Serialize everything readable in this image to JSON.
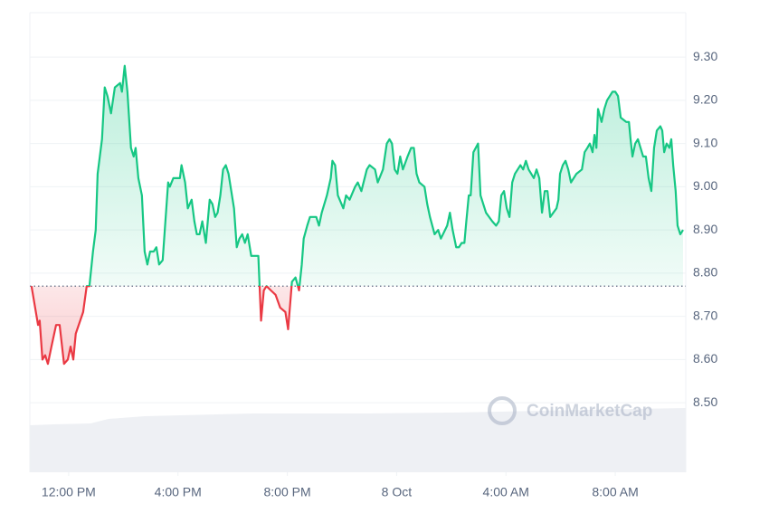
{
  "chart_data": {
    "type": "line",
    "watermark": "CoinMarketCap",
    "baseline": 8.77,
    "up_color": "#16c784",
    "down_color": "#ea3943",
    "grid": true,
    "xlim": [
      -1.42,
      22.58
    ],
    "ylim": [
      8.339,
      9.403
    ],
    "xticks": [
      {
        "value": 0,
        "label": "12:00 PM"
      },
      {
        "value": 4,
        "label": "4:00 PM"
      },
      {
        "value": 8,
        "label": "8:00 PM"
      },
      {
        "value": 12,
        "label": "8 Oct"
      },
      {
        "value": 16,
        "label": "4:00 AM"
      },
      {
        "value": 20,
        "label": "8:00 AM"
      }
    ],
    "yticks": [
      {
        "value": 8.5,
        "label": "8.50"
      },
      {
        "value": 8.6,
        "label": "8.60"
      },
      {
        "value": 8.7,
        "label": "8.70"
      },
      {
        "value": 8.8,
        "label": "8.80"
      },
      {
        "value": 8.9,
        "label": "8.90"
      },
      {
        "value": 9.0,
        "label": "9.00"
      },
      {
        "value": 9.1,
        "label": "9.10"
      },
      {
        "value": 9.2,
        "label": "9.20"
      },
      {
        "value": 9.3,
        "label": "9.30"
      }
    ],
    "x": [
      -1.36,
      -1.12,
      -1.06,
      -0.96,
      -0.86,
      -0.76,
      -0.63,
      -0.46,
      -0.33,
      -0.17,
      -0.03,
      0.07,
      0.17,
      0.26,
      0.53,
      0.66,
      0.76,
      0.89,
      0.99,
      1.06,
      1.22,
      1.32,
      1.42,
      1.55,
      1.69,
      1.88,
      1.95,
      2.05,
      2.15,
      2.28,
      2.38,
      2.45,
      2.55,
      2.68,
      2.78,
      2.88,
      2.98,
      3.11,
      3.21,
      3.31,
      3.44,
      3.54,
      3.64,
      3.7,
      3.83,
      4.07,
      4.13,
      4.26,
      4.36,
      4.5,
      4.6,
      4.69,
      4.79,
      4.89,
      5.02,
      5.16,
      5.26,
      5.36,
      5.45,
      5.55,
      5.65,
      5.75,
      5.85,
      5.95,
      6.05,
      6.15,
      6.25,
      6.35,
      6.45,
      6.55,
      6.68,
      6.94,
      7.04,
      7.14,
      7.24,
      7.4,
      7.57,
      7.74,
      7.93,
      8.03,
      8.17,
      8.3,
      8.43,
      8.53,
      8.6,
      8.73,
      8.83,
      9.06,
      9.16,
      9.26,
      9.45,
      9.59,
      9.65,
      9.75,
      9.85,
      10.05,
      10.15,
      10.28,
      10.48,
      10.58,
      10.71,
      10.91,
      11.01,
      11.21,
      11.31,
      11.5,
      11.64,
      11.74,
      11.83,
      11.93,
      12.03,
      12.13,
      12.23,
      12.4,
      12.53,
      12.63,
      12.73,
      12.83,
      13.02,
      13.12,
      13.22,
      13.39,
      13.52,
      13.62,
      13.85,
      13.95,
      14.05,
      14.18,
      14.28,
      14.38,
      14.48,
      14.55,
      14.64,
      14.71,
      14.81,
      14.98,
      15.07,
      15.27,
      15.5,
      15.64,
      15.74,
      15.83,
      15.93,
      16.03,
      16.13,
      16.23,
      16.33,
      16.53,
      16.63,
      16.73,
      16.83,
      17.02,
      17.12,
      17.22,
      17.32,
      17.42,
      17.52,
      17.62,
      17.85,
      17.92,
      17.98,
      18.08,
      18.18,
      18.28,
      18.38,
      18.58,
      18.78,
      18.88,
      18.98,
      19.07,
      19.17,
      19.24,
      19.31,
      19.37,
      19.5,
      19.6,
      19.7,
      19.9,
      20.0,
      20.1,
      20.2,
      20.4,
      20.5,
      20.56,
      20.63,
      20.73,
      20.83,
      21.02,
      21.12,
      21.22,
      21.32,
      21.42,
      21.52,
      21.65,
      21.72,
      21.79,
      21.88,
      21.98,
      22.05,
      22.12,
      22.21,
      22.28,
      22.38,
      22.48
    ],
    "values": [
      8.77,
      8.68,
      8.69,
      8.6,
      8.61,
      8.59,
      8.63,
      8.68,
      8.68,
      8.59,
      8.6,
      8.63,
      8.6,
      8.66,
      8.71,
      8.77,
      8.77,
      8.85,
      8.9,
      9.03,
      9.11,
      9.23,
      9.21,
      9.17,
      9.23,
      9.24,
      9.22,
      9.28,
      9.22,
      9.09,
      9.07,
      9.09,
      9.02,
      8.98,
      8.85,
      8.82,
      8.85,
      8.85,
      8.86,
      8.82,
      8.83,
      8.92,
      9.01,
      9.0,
      9.02,
      9.02,
      9.05,
      9.01,
      8.95,
      8.97,
      8.92,
      8.89,
      8.89,
      8.92,
      8.87,
      8.97,
      8.96,
      8.93,
      8.94,
      8.98,
      9.04,
      9.05,
      9.03,
      8.99,
      8.95,
      8.86,
      8.88,
      8.89,
      8.87,
      8.89,
      8.84,
      8.84,
      8.69,
      8.76,
      8.77,
      8.76,
      8.75,
      8.72,
      8.71,
      8.67,
      8.78,
      8.79,
      8.76,
      8.82,
      8.88,
      8.91,
      8.93,
      8.93,
      8.91,
      8.94,
      8.98,
      9.02,
      9.06,
      9.05,
      8.98,
      8.95,
      8.98,
      8.97,
      9.0,
      9.01,
      8.99,
      9.04,
      9.05,
      9.04,
      9.01,
      9.04,
      9.1,
      9.11,
      9.1,
      9.04,
      9.03,
      9.07,
      9.04,
      9.07,
      9.09,
      9.09,
      9.03,
      9.01,
      9.0,
      8.96,
      8.93,
      8.89,
      8.9,
      8.88,
      8.91,
      8.94,
      8.9,
      8.86,
      8.86,
      8.87,
      8.87,
      8.92,
      8.98,
      8.98,
      9.08,
      9.1,
      8.98,
      8.94,
      8.92,
      8.91,
      8.92,
      8.98,
      8.99,
      8.95,
      8.93,
      9.01,
      9.03,
      9.05,
      9.04,
      9.06,
      9.04,
      9.02,
      9.04,
      9.02,
      8.94,
      8.99,
      8.99,
      8.93,
      8.95,
      8.97,
      9.03,
      9.05,
      9.06,
      9.04,
      9.01,
      9.03,
      9.04,
      9.08,
      9.09,
      9.1,
      9.08,
      9.12,
      9.09,
      9.18,
      9.15,
      9.18,
      9.2,
      9.22,
      9.22,
      9.21,
      9.16,
      9.15,
      9.15,
      9.11,
      9.07,
      9.1,
      9.11,
      9.07,
      9.07,
      9.02,
      8.99,
      9.09,
      9.13,
      9.14,
      9.13,
      9.08,
      9.1,
      9.09,
      9.11,
      9.05,
      8.99,
      8.91,
      8.89,
      8.9
    ]
  }
}
